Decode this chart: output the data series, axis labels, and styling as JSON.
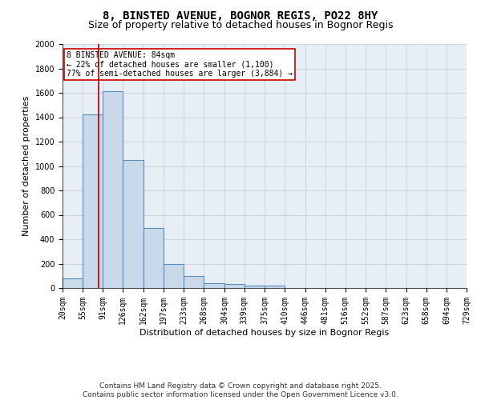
{
  "title": "8, BINSTED AVENUE, BOGNOR REGIS, PO22 8HY",
  "subtitle": "Size of property relative to detached houses in Bognor Regis",
  "xlabel": "Distribution of detached houses by size in Bognor Regis",
  "ylabel": "Number of detached properties",
  "bin_edges": [
    20,
    55,
    91,
    126,
    162,
    197,
    233,
    268,
    304,
    339,
    375,
    410,
    446,
    481,
    516,
    552,
    587,
    623,
    658,
    694,
    729
  ],
  "bar_heights": [
    80,
    1420,
    1610,
    1050,
    490,
    200,
    100,
    40,
    30,
    20,
    20,
    0,
    0,
    0,
    0,
    0,
    0,
    0,
    0,
    0
  ],
  "bar_color": "#c9d9ea",
  "bar_edgecolor": "#5b8db8",
  "bar_linewidth": 0.8,
  "grid_color": "#c8d0dc",
  "background_color": "#e8eef5",
  "vline_x": 84,
  "vline_color": "#aa0000",
  "vline_linewidth": 1.2,
  "annotation_text": "8 BINSTED AVENUE: 84sqm\n← 22% of detached houses are smaller (1,100)\n77% of semi-detached houses are larger (3,884) →",
  "annotation_fontsize": 7,
  "annotation_box_color": "#cc0000",
  "ylim": [
    0,
    2000
  ],
  "yticks": [
    0,
    200,
    400,
    600,
    800,
    1000,
    1200,
    1400,
    1600,
    1800,
    2000
  ],
  "title_fontsize": 10,
  "subtitle_fontsize": 9,
  "xlabel_fontsize": 8,
  "ylabel_fontsize": 8,
  "tick_fontsize": 7,
  "footer_text": "Contains HM Land Registry data © Crown copyright and database right 2025.\nContains public sector information licensed under the Open Government Licence v3.0.",
  "footer_fontsize": 6.5
}
